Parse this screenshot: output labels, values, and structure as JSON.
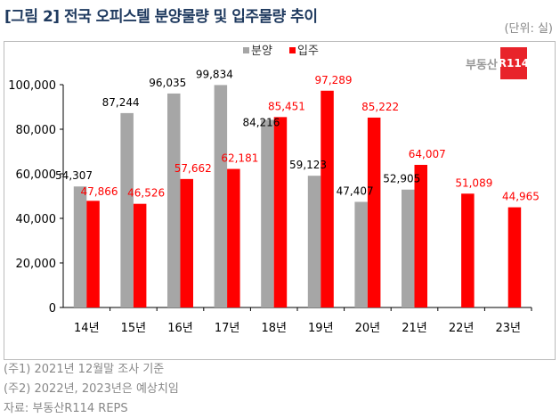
{
  "title": "[그림 2] 전국 오피스텔 분양물량 및 입주물량 추이",
  "unit": "(단위: 실)",
  "logo": {
    "text": "부동산",
    "badge": "R114"
  },
  "notes": [
    "(주1) 2021년 12월말 조사 기준",
    "(주2) 2022년, 2023년은 예상치임",
    "자료: 부동산R114 REPS"
  ],
  "chart_data": {
    "type": "bar",
    "categories": [
      "14년",
      "15년",
      "16년",
      "17년",
      "18년",
      "19년",
      "20년",
      "21년",
      "22년",
      "23년"
    ],
    "series": [
      {
        "name": "분양",
        "color": "#a6a6a6",
        "label_color": "#000000",
        "values": [
          54307,
          87244,
          96035,
          99834,
          84216,
          59123,
          47407,
          52905,
          null,
          null
        ],
        "labels": [
          "54,307",
          "87,244",
          "96,035",
          "99,834",
          "84,216",
          "59,123",
          "47,407",
          "52,905",
          "",
          ""
        ]
      },
      {
        "name": "입주",
        "color": "#ff0000",
        "label_color": "#ff0000",
        "values": [
          47866,
          46526,
          57662,
          62181,
          85451,
          97289,
          85222,
          64007,
          51089,
          44965
        ],
        "labels": [
          "47,866",
          "46,526",
          "57,662",
          "62,181",
          "85,451",
          "97,289",
          "85,222",
          "64,007",
          "51,089",
          "44,965"
        ]
      }
    ],
    "ylim": [
      0,
      100000
    ],
    "yticks": [
      "0",
      "20,000",
      "40,000",
      "60,000",
      "80,000",
      "100,000"
    ],
    "ytick_values": [
      0,
      20000,
      40000,
      60000,
      80000,
      100000
    ],
    "grid": false,
    "legend": "top-center"
  }
}
